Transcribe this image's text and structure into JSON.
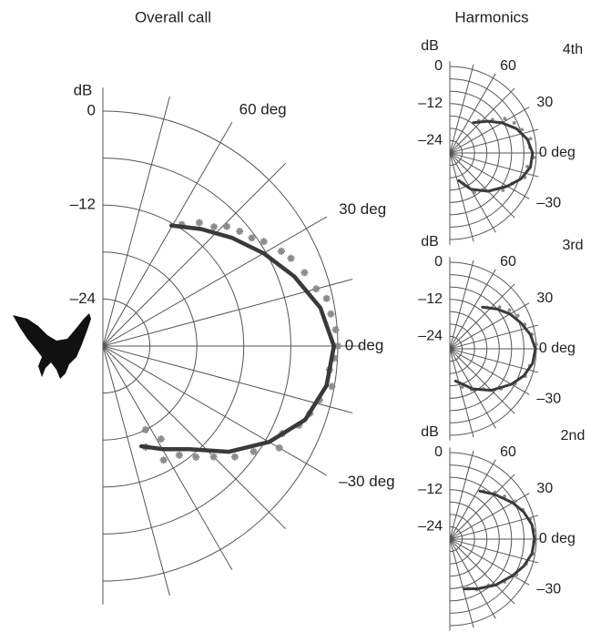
{
  "heading": "Harmonics",
  "chart_data": [
    {
      "type": "polar",
      "title": "Overall call",
      "r_label": "dB",
      "rlim": [
        -30,
        0
      ],
      "rticks": [
        0,
        {
          "value": -12,
          "label": "–12"
        },
        {
          "value": -24,
          "label": "–24"
        }
      ],
      "rgrid": [
        0,
        -6,
        -12,
        -18,
        -24
      ],
      "thetaticks": [
        {
          "value": 60,
          "label": "60 deg"
        },
        {
          "value": 30,
          "label": "30 deg"
        },
        {
          "value": 0,
          "label": "0 deg"
        },
        {
          "value": -30,
          "label": "–30 deg"
        }
      ],
      "thetagrid": [
        -90,
        -75,
        -60,
        -45,
        -30,
        -15,
        0,
        15,
        30,
        45,
        60,
        75,
        90
      ],
      "series": [
        {
          "type": "scatter",
          "color": "#8c8c8c",
          "theta": [
            57,
            52,
            47,
            44,
            40,
            36,
            33,
            28,
            25,
            20,
            15,
            12,
            8,
            4,
            0,
            -3,
            -6,
            -10,
            -14,
            -18,
            -22,
            -26,
            -30,
            -35,
            -40,
            -45,
            -50,
            -55,
            -62,
            -67,
            -63,
            -58
          ],
          "values": [
            -11.5,
            -10,
            -9.2,
            -8,
            -7.2,
            -6.5,
            -5.5,
            -4.2,
            -3.5,
            -2.6,
            -1.8,
            -0.8,
            -0.6,
            -0.2,
            0,
            -0.4,
            -0.9,
            -0.3,
            -1.5,
            -2.2,
            -3,
            -4.5,
            -4,
            -6.5,
            -8,
            -10,
            -11.5,
            -13,
            -13.5,
            -16,
            -18,
            -16
          ]
        },
        {
          "type": "line",
          "color": "#3a3a3a",
          "theta": [
            60.4,
            50,
            40,
            30,
            20,
            10,
            0,
            -10,
            -20,
            -30,
            -40,
            -50,
            -60,
            -69
          ],
          "values": [
            -12.3,
            -10.5,
            -8.5,
            -6.3,
            -4,
            -1.8,
            -0.5,
            -1,
            -2.5,
            -5.5,
            -9,
            -12.8,
            -14.8,
            -16.3
          ]
        }
      ]
    },
    {
      "type": "polar",
      "title": "4th",
      "r_label": "dB",
      "rlim": [
        -28,
        0
      ],
      "rticks": [
        0,
        {
          "value": -12,
          "label": "–12"
        },
        {
          "value": -24,
          "label": "–24"
        }
      ],
      "rgrid": [
        0,
        -4,
        -8,
        -12,
        -16,
        -20,
        -24
      ],
      "thetaticks": [
        60,
        30,
        {
          "value": 0,
          "label": "0 deg"
        },
        {
          "value": -30,
          "label": "–30"
        }
      ],
      "thetagrid": [
        -90,
        -75,
        -60,
        -45,
        -30,
        -15,
        0,
        15,
        30,
        45,
        60,
        75,
        90
      ],
      "series": [
        {
          "type": "scatter",
          "color": "#8c8c8c",
          "theta": [
            48,
            38,
            32,
            25,
            18,
            10,
            4,
            -3,
            -10,
            -18,
            -26,
            -35,
            -48,
            -58,
            -66
          ],
          "values": [
            -14,
            -10.5,
            -7,
            -5,
            -3.5,
            -1.5,
            -2,
            -0.8,
            -2.5,
            -2.5,
            -5.5,
            -7,
            -12,
            -13,
            -17
          ]
        },
        {
          "type": "line",
          "color": "#3a3a3a",
          "theta": [
            52,
            40,
            30,
            20,
            10,
            0,
            -10,
            -20,
            -30,
            -45,
            -60,
            -72
          ],
          "values": [
            -15.6,
            -12,
            -8.5,
            -5,
            -2.5,
            -1.2,
            -1.5,
            -3.5,
            -6.5,
            -10.5,
            -14.5,
            -18.6
          ]
        }
      ]
    },
    {
      "type": "polar",
      "title": "3rd",
      "r_label": "dB",
      "rlim": [
        -28,
        0
      ],
      "rticks": [
        0,
        {
          "value": -12,
          "label": "–12"
        },
        {
          "value": -24,
          "label": "–24"
        }
      ],
      "rgrid": [
        0,
        -4,
        -8,
        -12,
        -16,
        -20,
        -24
      ],
      "thetaticks": [
        60,
        30,
        {
          "value": 0,
          "label": "0 deg"
        },
        {
          "value": -30,
          "label": "–30"
        }
      ],
      "thetagrid": [
        -90,
        -75,
        -60,
        -45,
        -30,
        -15,
        0,
        15,
        30,
        45,
        60,
        75,
        90
      ],
      "series": [
        {
          "type": "scatter",
          "color": "#8c8c8c",
          "theta": [
            48,
            40,
            33,
            26,
            18,
            10,
            3,
            -4,
            -12,
            -20,
            -28,
            -38,
            -50,
            -62,
            -72
          ],
          "values": [
            -10,
            -7,
            -5,
            -3.5,
            -2.5,
            -1,
            0,
            -0.5,
            -1.5,
            -2,
            -4,
            -7,
            -11,
            -13,
            -15
          ]
        },
        {
          "type": "line",
          "color": "#3a3a3a",
          "theta": [
            52,
            40,
            30,
            20,
            10,
            0,
            -10,
            -20,
            -30,
            -45,
            -60,
            -80
          ],
          "values": [
            -10.9,
            -8,
            -5.5,
            -3.5,
            -1.5,
            -0.3,
            -0.8,
            -2.5,
            -5,
            -9,
            -13,
            -17.4
          ]
        }
      ]
    },
    {
      "type": "polar",
      "title": "2nd",
      "r_label": "dB",
      "rlim": [
        -28,
        0
      ],
      "rticks": [
        0,
        {
          "value": -12,
          "label": "–12"
        },
        {
          "value": -24,
          "label": "–24"
        }
      ],
      "rgrid": [
        0,
        -4,
        -8,
        -12,
        -16,
        -20,
        -24
      ],
      "thetaticks": [
        60,
        30,
        {
          "value": 0,
          "label": "0 deg"
        },
        {
          "value": -30,
          "label": "–30"
        }
      ],
      "thetagrid": [
        -90,
        -75,
        -60,
        -45,
        -30,
        -15,
        0,
        15,
        30,
        45,
        60,
        75,
        90
      ],
      "series": [
        {
          "type": "scatter",
          "color": "#9a8a92",
          "theta": [
            55,
            46,
            38,
            30,
            22,
            14,
            6,
            -2,
            -10,
            -18,
            -28,
            -38,
            -50,
            -62,
            -70
          ],
          "values": [
            -9,
            -7,
            -5.5,
            -3.5,
            -2.5,
            -1.2,
            -0.5,
            -0.8,
            -0.5,
            -2,
            -3.5,
            -5.5,
            -8.5,
            -9.5,
            -11
          ]
        },
        {
          "type": "line",
          "color": "#3a3a3a",
          "theta": [
            58,
            45,
            30,
            20,
            10,
            0,
            -10,
            -20,
            -30,
            -45,
            -60,
            -74
          ],
          "values": [
            -9.7,
            -7.5,
            -4.5,
            -2.5,
            -1,
            -0.6,
            -1,
            -2.5,
            -4.5,
            -7,
            -9.5,
            -11.2
          ]
        }
      ]
    }
  ]
}
